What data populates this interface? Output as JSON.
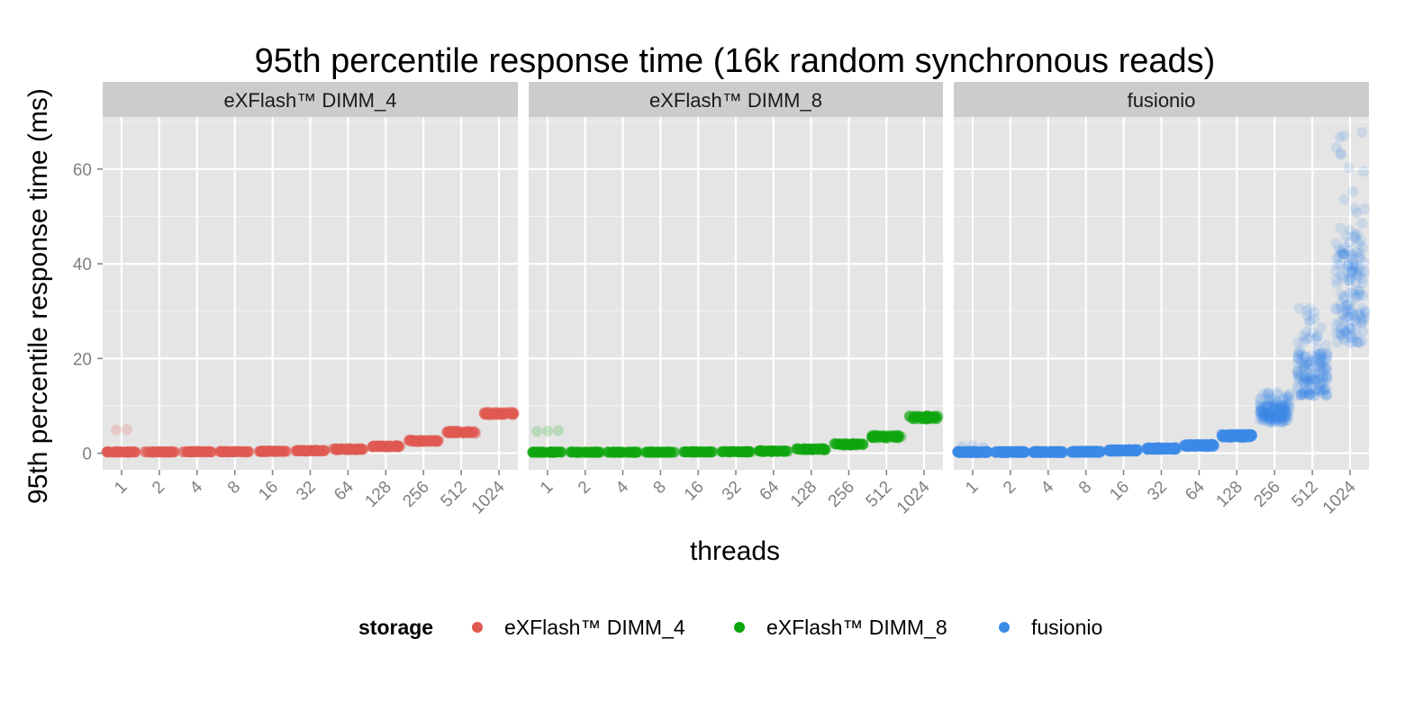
{
  "chart_data": {
    "type": "scatter",
    "title": "95th percentile response time (16k random synchronous reads)",
    "xlabel": "threads",
    "ylabel": "95th percentile response time (ms)",
    "x_categories": [
      "1",
      "2",
      "4",
      "8",
      "16",
      "32",
      "64",
      "128",
      "256",
      "512",
      "1024"
    ],
    "y_ticks": [
      "0",
      "20",
      "40",
      "60"
    ],
    "y_tick_values": [
      0,
      20,
      40,
      60
    ],
    "ylim": [
      -3.5,
      71
    ],
    "grid": true,
    "legend": {
      "title": "storage",
      "position": "bottom"
    },
    "facets": [
      {
        "name": "eXFlash™ DIMM_4",
        "color": "#e0584f",
        "points_per_category": 60,
        "values": [
          {
            "min": 0.2,
            "max": 0.35,
            "outliers": [
              4.9,
              5.0
            ]
          },
          {
            "min": 0.2,
            "max": 0.35
          },
          {
            "min": 0.25,
            "max": 0.4
          },
          {
            "min": 0.25,
            "max": 0.4
          },
          {
            "min": 0.3,
            "max": 0.5
          },
          {
            "min": 0.4,
            "max": 0.65
          },
          {
            "min": 0.7,
            "max": 1.0
          },
          {
            "min": 1.3,
            "max": 1.6
          },
          {
            "min": 2.4,
            "max": 2.8
          },
          {
            "min": 4.2,
            "max": 4.7
          },
          {
            "min": 8.1,
            "max": 8.7
          }
        ]
      },
      {
        "name": "eXFlash™ DIMM_8",
        "color": "#0da50d",
        "points_per_category": 60,
        "values": [
          {
            "min": 0.15,
            "max": 0.3,
            "outliers": [
              4.6,
              4.7,
              4.8
            ]
          },
          {
            "min": 0.15,
            "max": 0.3
          },
          {
            "min": 0.15,
            "max": 0.3
          },
          {
            "min": 0.15,
            "max": 0.3
          },
          {
            "min": 0.2,
            "max": 0.35
          },
          {
            "min": 0.25,
            "max": 0.4
          },
          {
            "min": 0.3,
            "max": 0.55
          },
          {
            "min": 0.7,
            "max": 1.0
          },
          {
            "min": 1.7,
            "max": 2.1
          },
          {
            "min": 3.2,
            "max": 3.8
          },
          {
            "min": 7.2,
            "max": 7.9
          }
        ]
      },
      {
        "name": "fusionio",
        "color": "#3c8ae8",
        "points_per_category": 150,
        "values": [
          {
            "min": 0.1,
            "max": 0.4,
            "outliers": [
              1.4,
              1.6,
              1.2
            ]
          },
          {
            "min": 0.1,
            "max": 0.4
          },
          {
            "min": 0.1,
            "max": 0.4
          },
          {
            "min": 0.15,
            "max": 0.45
          },
          {
            "min": 0.4,
            "max": 0.8
          },
          {
            "min": 0.8,
            "max": 1.2
          },
          {
            "min": 1.4,
            "max": 1.9
          },
          {
            "min": 3.3,
            "max": 4.0
          },
          {
            "min": 6.5,
            "max": 10.0,
            "spread_max": 13.0
          },
          {
            "min": 12.0,
            "max": 21.0,
            "spread_max": 31.0
          },
          {
            "min": 23.0,
            "max": 42.0,
            "spread_max": 68.0
          }
        ]
      }
    ]
  }
}
